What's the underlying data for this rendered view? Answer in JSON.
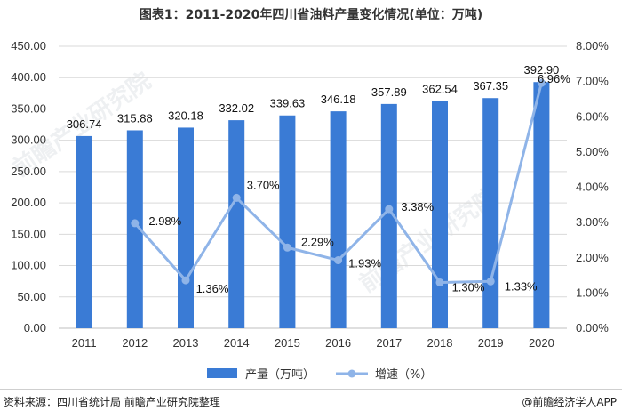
{
  "title": "图表1：2011-2020年四川省油料产量变化情况(单位：万吨)",
  "footer": {
    "source": "资料来源：四川省统计局 前瞻产业研究院整理",
    "brand": "@前瞻经济学人APP"
  },
  "watermark": "前瞻产业研究院",
  "colors": {
    "bar": "#3a7bd5",
    "line": "#8fb4e8",
    "grid": "#d9d9d9"
  },
  "chart_data": {
    "type": "bar",
    "categories": [
      "2011",
      "2012",
      "2013",
      "2014",
      "2015",
      "2016",
      "2017",
      "2018",
      "2019",
      "2020"
    ],
    "series": [
      {
        "name": "产量（万吨）",
        "axis": "left",
        "type": "bar",
        "values": [
          306.74,
          315.88,
          320.18,
          332.02,
          339.63,
          346.18,
          357.89,
          362.54,
          367.35,
          392.9
        ],
        "labels": [
          "306.74",
          "315.88",
          "320.18",
          "332.02",
          "339.63",
          "346.18",
          "357.89",
          "362.54",
          "367.35",
          "392.90"
        ]
      },
      {
        "name": "增速（%）",
        "axis": "right",
        "type": "line",
        "values": [
          null,
          2.98,
          1.36,
          3.7,
          2.29,
          1.93,
          3.38,
          1.3,
          1.33,
          6.96
        ],
        "labels": [
          "",
          "2.98%",
          "1.36%",
          "3.70%",
          "2.29%",
          "1.93%",
          "3.38%",
          "1.30%",
          "1.33%",
          "6.96%"
        ]
      }
    ],
    "y_left": {
      "min": 0,
      "max": 450,
      "ticks": [
        "0.00",
        "50.00",
        "100.00",
        "150.00",
        "200.00",
        "250.00",
        "300.00",
        "350.00",
        "400.00",
        "450.00"
      ]
    },
    "y_right": {
      "min": 0,
      "max": 8,
      "ticks": [
        "0.00%",
        "1.00%",
        "2.00%",
        "3.00%",
        "4.00%",
        "5.00%",
        "6.00%",
        "7.00%",
        "8.00%"
      ]
    },
    "legend": [
      "产量（万吨）",
      "增速（%）"
    ],
    "legend_position": "bottom",
    "grid": true
  }
}
